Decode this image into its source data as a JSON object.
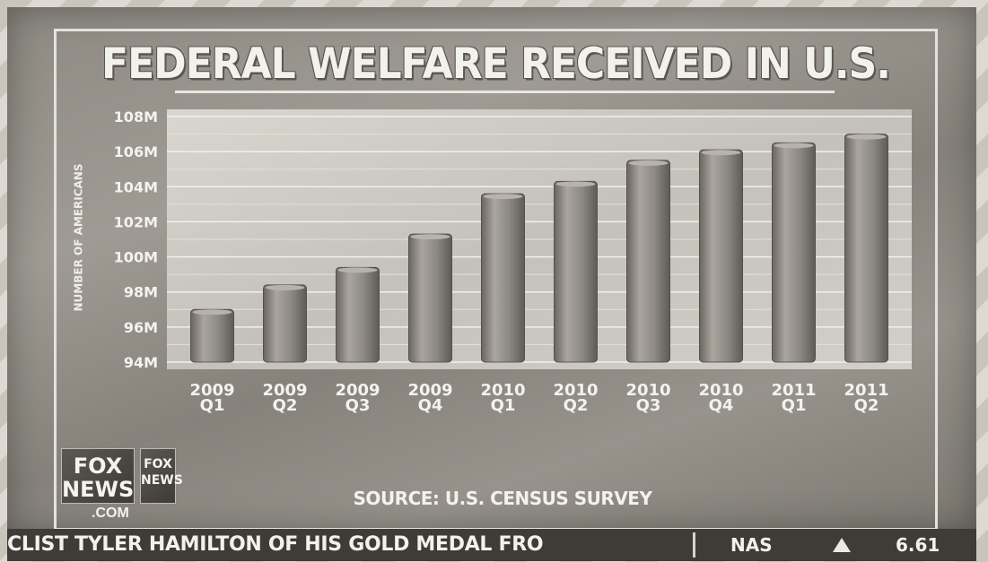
{
  "title": "FEDERAL WELFARE RECEIVED IN U.S.",
  "source": "SOURCE: U.S. CENSUS SURVEY",
  "logo": {
    "line1": "FOX",
    "line2": "NEWS",
    "dotcom": ".COM",
    "mini1": "FOX",
    "mini2": "NEWS"
  },
  "ticker": {
    "text": "CLIST TYLER HAMILTON OF HIS GOLD MEDAL FRO",
    "symbol": "NAS",
    "value": "6.61"
  },
  "chart_data": {
    "type": "bar",
    "title": "FEDERAL WELFARE RECEIVED IN U.S.",
    "ylabel": "NUMBER OF AMERICANS",
    "xlabel": "",
    "ylim": [
      94,
      108
    ],
    "yticks": [
      "94M",
      "96M",
      "98M",
      "100M",
      "102M",
      "104M",
      "106M",
      "108M"
    ],
    "categories": [
      [
        "2009",
        "Q1"
      ],
      [
        "2009",
        "Q2"
      ],
      [
        "2009",
        "Q3"
      ],
      [
        "2009",
        "Q4"
      ],
      [
        "2010",
        "Q1"
      ],
      [
        "2010",
        "Q2"
      ],
      [
        "2010",
        "Q3"
      ],
      [
        "2010",
        "Q4"
      ],
      [
        "2011",
        "Q1"
      ],
      [
        "2011",
        "Q2"
      ]
    ],
    "values": [
      97.0,
      98.4,
      99.4,
      101.3,
      103.6,
      104.3,
      105.5,
      106.1,
      106.5,
      107.0
    ],
    "grid": true,
    "colors": {
      "bar": "#8a8680",
      "bar_light": "#a8a49e",
      "bar_dark": "#5f5b55",
      "plot_bg": "#cfccc5",
      "grid": "#f1f0ec"
    }
  }
}
